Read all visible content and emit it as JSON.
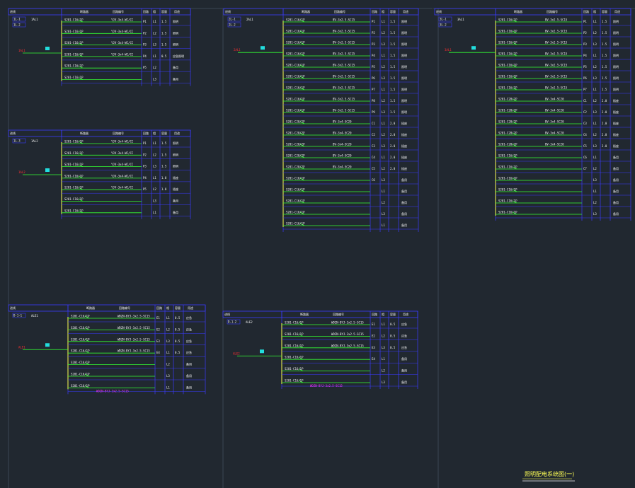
{
  "drawing": {
    "title": "照明配电系统图(一)"
  },
  "colors": {
    "background": "#212830",
    "frame": "#3c4654",
    "table": "#3b3bff",
    "busbar": "#ffff55",
    "circuit": "#33ff33",
    "text": "#f4f4f4",
    "highlight": "#ff3030",
    "note": "#ff33ff",
    "breaker": "#22dddd"
  },
  "header_labels": {
    "panel": "进线",
    "breaker": "断路器",
    "cable": "回路编号",
    "circuit": "回路",
    "phase": "相",
    "load": "容量",
    "use": "用途"
  },
  "panels": [
    {
      "codes": [
        "1L-1",
        "1L-2"
      ],
      "panel_code": "1AL1",
      "breaker_models": [
        "S201-C16/1P",
        "S201-C16/1P",
        "S201-C16/1P",
        "S201-C16/1P",
        "S201-C16/1P",
        "S201-C16/1P"
      ],
      "cables": [
        "YJV-3x4-WC/CC",
        "YJV-3x4-WC/CC",
        "YJV-3x4-WC/CC",
        "YJV-3x4-WC/CC"
      ],
      "circuits": [
        "P1",
        "P2",
        "P3",
        "P4",
        "P5",
        ""
      ],
      "phases": [
        "L1",
        "L2",
        "L3",
        "L1",
        "L2",
        "L3"
      ],
      "loads": [
        "1.5",
        "1.5",
        "1.5",
        "0.5",
        "",
        ""
      ],
      "uses": [
        "照明",
        "照明",
        "照明",
        "应急照明",
        "备用",
        "备用"
      ]
    },
    {
      "codes": [
        "1L-3"
      ],
      "panel_code": "1AL2",
      "breaker_models": [
        "S201-C16/1P",
        "S201-C16/1P",
        "S201-C16/1P",
        "S201-C16/1P",
        "S201-C16/1P",
        "S201-C16/1P",
        "S201-C16/1P"
      ],
      "cables": [
        "YJV-3x4-WC/CC",
        "YJV-3x4-WC/CC",
        "YJV-3x4-WC/CC",
        "YJV-3x4-WC/CC",
        "YJV-3x4-WC/CC"
      ],
      "circuits": [
        "P1",
        "P2",
        "P3",
        "P4",
        "P5",
        "",
        ""
      ],
      "phases": [
        "L1",
        "L2",
        "L3",
        "L1",
        "L2",
        "L3",
        "L1"
      ],
      "loads": [
        "1.5",
        "1.5",
        "1.5",
        "1.0",
        "1.0",
        "",
        ""
      ],
      "uses": [
        "照明",
        "照明",
        "照明",
        "插座",
        "插座",
        "备用",
        "备用"
      ]
    },
    {
      "codes": [
        "2L-1",
        "2L-2"
      ],
      "panel_code": "2AL1",
      "breaker_models": [
        "S201-C16/1P",
        "S201-C16/1P",
        "S201-C16/1P",
        "S201-C16/1P",
        "S201-C16/1P",
        "S201-C16/1P",
        "S201-C16/1P",
        "S201-C16/1P",
        "S201-C16/1P",
        "S201-C20/2P",
        "S201-C20/2P",
        "S201-C20/2P",
        "S201-C20/2P",
        "S201-C20/2P",
        "S201-C16/1P",
        "S201-C16/1P",
        "S201-C16/1P",
        "S201-C16/1P",
        "S201-C16/1P"
      ],
      "cables": [
        "BV-3x2.5-SC15",
        "BV-3x2.5-SC15",
        "BV-3x2.5-SC15",
        "BV-3x2.5-SC15",
        "BV-3x2.5-SC15",
        "BV-3x2.5-SC15",
        "BV-3x2.5-SC15",
        "BV-3x2.5-SC15",
        "BV-3x2.5-SC15",
        "BV-3x4-SC20",
        "BV-3x4-SC20",
        "BV-3x4-SC20",
        "BV-3x4-SC20",
        "BV-3x4-SC20"
      ],
      "circuits": [
        "P1",
        "P2",
        "P3",
        "P4",
        "P5",
        "P6",
        "P7",
        "P8",
        "P9",
        "C1",
        "C2",
        "C3",
        "C4",
        "C5",
        "C6",
        "",
        "",
        "",
        ""
      ],
      "phases": [
        "L1",
        "L2",
        "L3",
        "L1",
        "L2",
        "L3",
        "L1",
        "L2",
        "L3",
        "L1",
        "L2",
        "L3",
        "L1",
        "L2",
        "L3",
        "L1",
        "L2",
        "L3",
        "L1"
      ],
      "loads": [
        "1.5",
        "1.5",
        "1.5",
        "1.5",
        "1.5",
        "1.5",
        "1.5",
        "1.5",
        "1.5",
        "2.0",
        "2.0",
        "2.0",
        "2.0",
        "2.0",
        "",
        "",
        "",
        "",
        ""
      ],
      "uses": [
        "照明",
        "照明",
        "照明",
        "照明",
        "照明",
        "照明",
        "照明",
        "照明",
        "照明",
        "插座",
        "插座",
        "插座",
        "插座",
        "插座",
        "备用",
        "备用",
        "备用",
        "备用",
        "备用"
      ]
    },
    {
      "codes": [
        "3L-1",
        "3L-2"
      ],
      "panel_code": "3AL1",
      "breaker_models": [
        "S201-C16/1P",
        "S201-C16/1P",
        "S201-C16/1P",
        "S201-C16/1P",
        "S201-C16/1P",
        "S201-C16/1P",
        "S201-C16/1P",
        "S201-C20/2P",
        "S201-C20/2P",
        "S201-C20/2P",
        "S201-C20/2P",
        "S201-C20/2P",
        "S201-C16/1P",
        "S201-C16/1P",
        "S201-C16/1P",
        "S201-C16/1P",
        "S201-C16/1P",
        "S201-C16/1P"
      ],
      "cables": [
        "BV-3x2.5-SC15",
        "BV-3x2.5-SC15",
        "BV-3x2.5-SC15",
        "BV-3x2.5-SC15",
        "BV-3x2.5-SC15",
        "BV-3x2.5-SC15",
        "BV-3x2.5-SC15",
        "BV-3x4-SC20",
        "BV-3x4-SC20",
        "BV-3x4-SC20",
        "BV-3x4-SC20",
        "BV-3x4-SC20"
      ],
      "circuits": [
        "P1",
        "P2",
        "P3",
        "P4",
        "P5",
        "P6",
        "P7",
        "C1",
        "C2",
        "C3",
        "C4",
        "C5",
        "C6",
        "C7",
        "",
        "",
        "",
        ""
      ],
      "phases": [
        "L1",
        "L2",
        "L3",
        "L1",
        "L2",
        "L3",
        "L1",
        "L2",
        "L3",
        "L1",
        "L2",
        "L3",
        "L1",
        "L2",
        "L3",
        "L1",
        "L2",
        "L3"
      ],
      "loads": [
        "1.5",
        "1.5",
        "1.5",
        "1.5",
        "1.5",
        "1.5",
        "1.5",
        "2.0",
        "2.0",
        "2.0",
        "2.0",
        "2.0",
        "",
        "",
        "",
        "",
        "",
        ""
      ],
      "uses": [
        "照明",
        "照明",
        "照明",
        "照明",
        "照明",
        "照明",
        "照明",
        "插座",
        "插座",
        "插座",
        "插座",
        "插座",
        "备用",
        "备用",
        "备用",
        "备用",
        "备用",
        "备用"
      ]
    },
    {
      "codes": [
        "D-1-1"
      ],
      "panel_code": "ALE1",
      "breaker_models": [
        "S201-C16/1P",
        "S201-C16/1P",
        "S201-C16/1P",
        "S201-C16/1P",
        "S201-C16/1P",
        "S201-C16/1P",
        "S201-C16/1P"
      ],
      "cables": [
        "WDZN-BYJ-3x2.5-SC15",
        "WDZN-BYJ-3x2.5-SC15",
        "WDZN-BYJ-3x2.5-SC15",
        "WDZN-BYJ-3x2.5-SC15"
      ],
      "circuits": [
        "E1",
        "E2",
        "E3",
        "E4",
        "",
        "",
        ""
      ],
      "phases": [
        "L1",
        "L2",
        "L3",
        "L1",
        "L2",
        "L3",
        "L1"
      ],
      "loads": [
        "0.5",
        "0.5",
        "0.5",
        "0.5",
        "",
        "",
        ""
      ],
      "uses": [
        "应急",
        "应急",
        "应急",
        "应急",
        "备用",
        "备用",
        "备用"
      ],
      "note": "WDZN-BYJ-3x2.5-SC15"
    },
    {
      "codes": [
        "D-1-2"
      ],
      "panel_code": "ALE2",
      "breaker_models": [
        "S201-C16/1P",
        "S201-C16/1P",
        "S201-C16/1P",
        "S201-C16/1P",
        "S201-C16/1P",
        "S201-C16/1P"
      ],
      "cables": [
        "WDZN-BYJ-3x2.5-SC15",
        "WDZN-BYJ-3x2.5-SC15",
        "WDZN-BYJ-3x2.5-SC15"
      ],
      "circuits": [
        "E1",
        "E2",
        "E3",
        "E4",
        "",
        ""
      ],
      "phases": [
        "L1",
        "L2",
        "L3",
        "L1",
        "L2",
        "L3"
      ],
      "loads": [
        "0.5",
        "0.5",
        "0.5",
        "",
        "",
        ""
      ],
      "uses": [
        "应急",
        "应急",
        "应急",
        "备用",
        "备用",
        "备用"
      ],
      "note": "WDZN-BYJ-3x2.5-SC15"
    }
  ]
}
